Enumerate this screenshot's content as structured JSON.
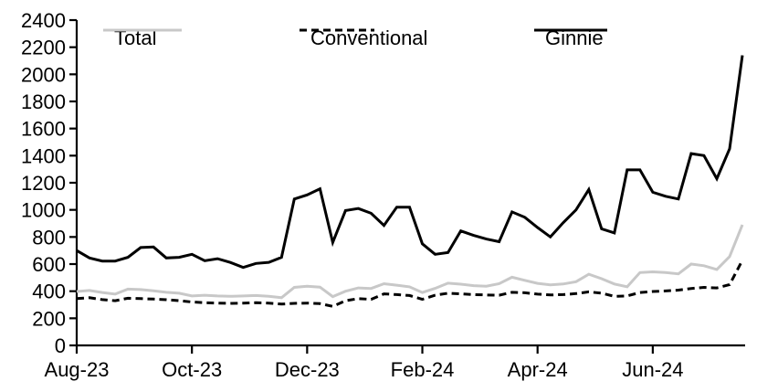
{
  "chart_data": {
    "type": "line",
    "title": "",
    "ylim": [
      0,
      2400
    ],
    "y_tick_step": 200,
    "grid": false,
    "legend_position": "top",
    "x_ticks": [
      {
        "index": 0,
        "label": "Aug-23"
      },
      {
        "index": 9,
        "label": "Oct-23"
      },
      {
        "index": 18,
        "label": "Dec-23"
      },
      {
        "index": 27,
        "label": "Feb-24"
      },
      {
        "index": 36,
        "label": "Apr-24"
      },
      {
        "index": 45,
        "label": "Jun-24"
      }
    ],
    "x_unit": "week",
    "series": [
      {
        "name": "Total",
        "color": "#c8c8c8",
        "dash": "solid",
        "values": [
          398,
          405,
          390,
          378,
          415,
          412,
          403,
          392,
          385,
          365,
          370,
          365,
          362,
          365,
          368,
          362,
          352,
          428,
          437,
          430,
          360,
          400,
          424,
          420,
          455,
          444,
          432,
          390,
          421,
          459,
          452,
          441,
          437,
          455,
          503,
          480,
          458,
          447,
          453,
          470,
          525,
          492,
          453,
          432,
          537,
          543,
          537,
          528,
          600,
          588,
          560,
          655,
          890
        ]
      },
      {
        "name": "Conventional",
        "color": "#000000",
        "dash": "dashed",
        "values": [
          345,
          352,
          338,
          330,
          348,
          345,
          342,
          337,
          330,
          320,
          315,
          312,
          310,
          312,
          315,
          312,
          305,
          310,
          312,
          308,
          288,
          330,
          345,
          340,
          380,
          375,
          368,
          340,
          370,
          385,
          380,
          375,
          372,
          370,
          392,
          388,
          378,
          372,
          375,
          382,
          395,
          385,
          362,
          365,
          390,
          398,
          402,
          408,
          420,
          428,
          424,
          448,
          628
        ]
      },
      {
        "name": "Ginnie",
        "color": "#000000",
        "dash": "solid",
        "values": [
          700,
          645,
          622,
          622,
          650,
          722,
          726,
          645,
          650,
          672,
          625,
          640,
          612,
          575,
          605,
          613,
          650,
          1080,
          1110,
          1155,
          760,
          995,
          1010,
          975,
          885,
          1020,
          1020,
          750,
          672,
          685,
          845,
          812,
          785,
          765,
          985,
          945,
          870,
          800,
          905,
          1000,
          1150,
          860,
          830,
          1295,
          1295,
          1130,
          1100,
          1080,
          1415,
          1400,
          1230,
          1450,
          2140
        ]
      }
    ],
    "colors": {
      "axis": "#000000",
      "tick_label": "#000000",
      "total_line": "#c8c8c8",
      "conventional_line": "#000000",
      "ginnie_line": "#000000"
    }
  }
}
